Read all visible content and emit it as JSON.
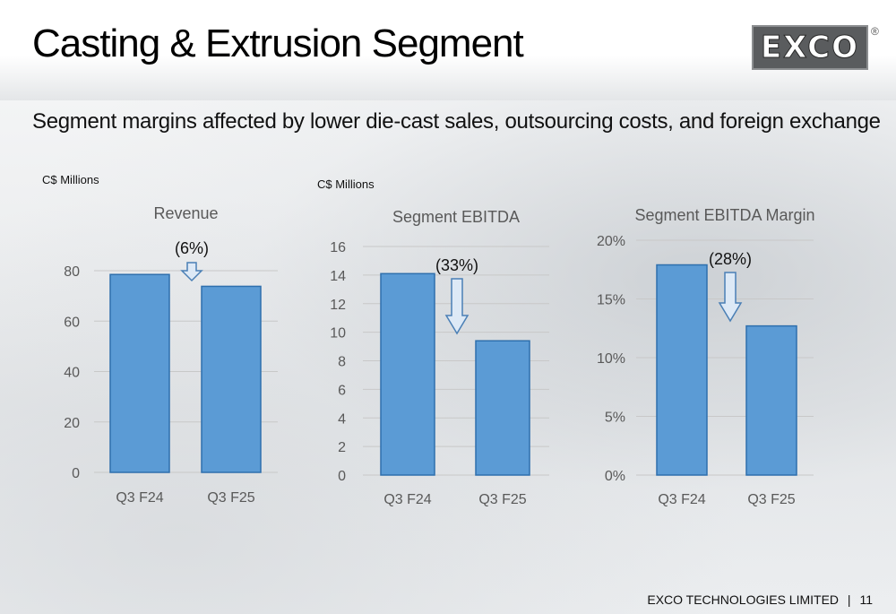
{
  "header": {
    "title": "Casting & Extrusion Segment",
    "logo_text": "EXCO",
    "registered_mark": "®"
  },
  "subtitle": "Segment margins affected by lower die-cast sales, outsourcing costs, and foreign exchange",
  "units": {
    "revenue": "C$ Millions",
    "ebitda": "C$ Millions"
  },
  "footer": {
    "company": "EXCO TECHNOLOGIES LIMITED",
    "separator": "|",
    "page": "11"
  },
  "colors": {
    "bar_fill": "#5b9bd5",
    "bar_stroke": "#2e6fad",
    "arrow_fill": "#dde9f6",
    "arrow_stroke": "#4a7fb5",
    "grid": "#c8c8c8",
    "axis_text": "#595959"
  },
  "chart_data": [
    {
      "type": "bar",
      "title": "Revenue",
      "categories": [
        "Q3 F24",
        "Q3 F25"
      ],
      "values": [
        78.5,
        73.8
      ],
      "ylim": [
        0,
        80
      ],
      "yticks": [
        0,
        20,
        40,
        60,
        80
      ],
      "ytick_labels": [
        "0",
        "20",
        "40",
        "60",
        "80"
      ],
      "grid": true,
      "change_label": "(6%)"
    },
    {
      "type": "bar",
      "title": "Segment EBITDA",
      "categories": [
        "Q3 F24",
        "Q3 F25"
      ],
      "values": [
        14.1,
        9.4
      ],
      "ylim": [
        0,
        16
      ],
      "yticks": [
        0,
        2,
        4,
        6,
        8,
        10,
        12,
        14,
        16
      ],
      "ytick_labels": [
        "0",
        "2",
        "4",
        "6",
        "8",
        "10",
        "12",
        "14",
        "16"
      ],
      "grid": true,
      "change_label": "(33%)"
    },
    {
      "type": "bar",
      "title": "Segment EBITDA Margin",
      "categories": [
        "Q3 F24",
        "Q3 F25"
      ],
      "values": [
        17.9,
        12.7
      ],
      "ylim": [
        0,
        20
      ],
      "yticks": [
        0,
        5,
        10,
        15,
        20
      ],
      "ytick_labels": [
        "0%",
        "5%",
        "10%",
        "15%",
        "20%"
      ],
      "grid": true,
      "change_label": "(28%)"
    }
  ]
}
